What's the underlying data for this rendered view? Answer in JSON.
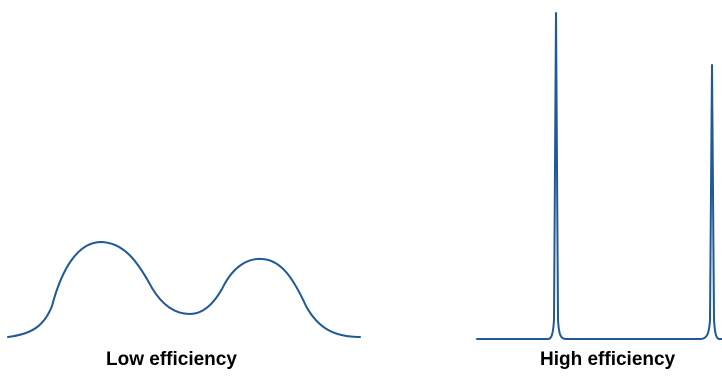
{
  "diagram": {
    "line_color": "#1f5996",
    "panels": [
      {
        "id": "low",
        "label": "Low efficiency",
        "peaks": "broad, overlapping"
      },
      {
        "id": "high",
        "label": "High efficiency",
        "peaks": "narrow, sharp"
      }
    ]
  }
}
